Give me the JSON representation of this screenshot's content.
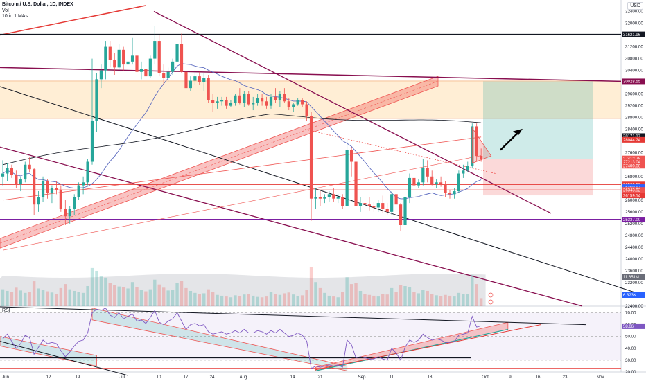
{
  "header": {
    "title": "Bitcoin / U.S. Dollar, 1D, INDEX",
    "vol_label": "Vol",
    "ma_label": "10 in 1 MAs",
    "currency": "USD",
    "rsi_label": "RSI"
  },
  "colors": {
    "up": "#26a69a",
    "down": "#ef5350",
    "arrow": "#000000",
    "support": "#7b1fa2",
    "resistance": "#e53935",
    "channel": "#880e4f"
  },
  "icons": [
    "long-arrow-icon",
    "close-x-icon"
  ],
  "chart_data": [
    {
      "type": "candlestick",
      "title": "Bitcoin / U.S. Dollar, 1D, INDEX",
      "ylim": [
        22400,
        32600
      ],
      "y_ticks": [
        "32400.00",
        "32000.00",
        "31600.00",
        "31200.00",
        "30800.00",
        "30400.00",
        "30000.00",
        "29600.00",
        "29200.00",
        "28800.00",
        "28400.00",
        "28000.00",
        "27600.00",
        "27200.00",
        "26800.00",
        "26400.00",
        "26000.00",
        "25600.00",
        "25200.00",
        "24800.00",
        "24400.00",
        "24000.00",
        "23600.00",
        "23200.00",
        "22800.00",
        "22400.00"
      ],
      "price_badges": [
        {
          "label": "31621.96",
          "value": 31622,
          "color": "#131722"
        },
        {
          "label": "30028.55",
          "value": 30028,
          "color": "#880e4f"
        },
        {
          "label": "28171.17",
          "value": 28171,
          "color": "#131722"
        },
        {
          "label": "28044.24",
          "value": 28044,
          "color": "#e53935"
        },
        {
          "label": "27412.78",
          "value": 27413,
          "color": "#ef5350"
        },
        {
          "label": "27213.04",
          "value": 27290,
          "color": "#ef5350"
        },
        {
          "label": "27400.00",
          "value": 27165,
          "color": "#ef5350"
        },
        {
          "label": "26529.57",
          "value": 26530,
          "color": "#e53935"
        },
        {
          "label": "26469.87",
          "value": 26440,
          "color": "#2962ff"
        },
        {
          "label": "26343.92",
          "value": 26344,
          "color": "#ef5350"
        },
        {
          "label": "26159.14",
          "value": 26159,
          "color": "#e53935"
        },
        {
          "label": "25337.00",
          "value": 25337,
          "color": "#7b1fa2"
        }
      ],
      "volume_badges": [
        "11.651M",
        "6.323K"
      ],
      "horizontal_levels": [
        31622,
        30028,
        26530,
        26340,
        25337
      ],
      "candles_ohlc": [
        [
          26800,
          27350,
          26500,
          26900
        ],
        [
          26900,
          27250,
          26650,
          27100
        ],
        [
          27100,
          27200,
          26750,
          26850
        ],
        [
          26850,
          27000,
          26400,
          26550
        ],
        [
          26550,
          26800,
          26300,
          26700
        ],
        [
          26700,
          27300,
          26600,
          27200
        ],
        [
          27200,
          27450,
          26950,
          27050
        ],
        [
          27050,
          27100,
          25500,
          25850
        ],
        [
          25850,
          26300,
          25600,
          26100
        ],
        [
          26100,
          26800,
          25950,
          26650
        ],
        [
          26650,
          26700,
          26050,
          26250
        ],
        [
          26250,
          26500,
          25900,
          26400
        ],
        [
          26400,
          26650,
          26200,
          26350
        ],
        [
          26350,
          26500,
          25600,
          25700
        ],
        [
          25700,
          26000,
          25150,
          25450
        ],
        [
          25450,
          25800,
          25200,
          25700
        ],
        [
          25700,
          26200,
          25500,
          26100
        ],
        [
          26100,
          26600,
          26000,
          26500
        ],
        [
          26500,
          26800,
          26200,
          26600
        ],
        [
          26600,
          27400,
          26500,
          27300
        ],
        [
          27300,
          30800,
          27200,
          28700
        ],
        [
          28700,
          30300,
          28300,
          30100
        ],
        [
          30100,
          30600,
          29800,
          30400
        ],
        [
          30400,
          31400,
          30100,
          31200
        ],
        [
          31200,
          31400,
          30500,
          30750
        ],
        [
          30750,
          31000,
          30250,
          30500
        ],
        [
          30500,
          31300,
          30400,
          31100
        ],
        [
          31100,
          31200,
          30400,
          30600
        ],
        [
          30600,
          30900,
          30300,
          30700
        ],
        [
          30700,
          31500,
          30600,
          30900
        ],
        [
          30900,
          31100,
          30200,
          30350
        ],
        [
          30350,
          30700,
          30100,
          30450
        ],
        [
          30450,
          30600,
          30000,
          30200
        ],
        [
          30200,
          30900,
          30150,
          30800
        ],
        [
          30800,
          31900,
          30600,
          31400
        ],
        [
          31400,
          31600,
          30200,
          30300
        ],
        [
          30300,
          30600,
          29900,
          30150
        ],
        [
          30150,
          30500,
          30000,
          30350
        ],
        [
          30350,
          30800,
          30250,
          30700
        ],
        [
          30700,
          31500,
          30500,
          31300
        ],
        [
          31300,
          31650,
          30300,
          30350
        ],
        [
          30350,
          30400,
          29600,
          29800
        ],
        [
          29800,
          30200,
          29700,
          30050
        ],
        [
          30050,
          30400,
          29900,
          30200
        ],
        [
          30200,
          30350,
          29900,
          30000
        ],
        [
          30000,
          30300,
          29700,
          30150
        ],
        [
          30150,
          30250,
          29300,
          29400
        ],
        [
          29400,
          29600,
          29000,
          29300
        ],
        [
          29300,
          29500,
          29100,
          29350
        ],
        [
          29350,
          29500,
          29200,
          29400
        ],
        [
          29400,
          29500,
          29100,
          29200
        ],
        [
          29200,
          29400,
          29150,
          29300
        ],
        [
          29300,
          29600,
          29200,
          29550
        ],
        [
          29550,
          29800,
          29250,
          29300
        ],
        [
          29300,
          29700,
          29150,
          29600
        ],
        [
          29600,
          29700,
          29200,
          29250
        ],
        [
          29250,
          29500,
          29050,
          29300
        ],
        [
          29300,
          29600,
          29200,
          29450
        ],
        [
          29450,
          29600,
          29200,
          29350
        ],
        [
          29350,
          29500,
          29100,
          29200
        ],
        [
          29200,
          29600,
          29100,
          29500
        ],
        [
          29500,
          29800,
          29300,
          29400
        ],
        [
          29400,
          29700,
          29150,
          29600
        ],
        [
          29600,
          29800,
          29300,
          29350
        ],
        [
          29350,
          29450,
          29050,
          29150
        ],
        [
          29150,
          29300,
          29000,
          29250
        ],
        [
          29250,
          29450,
          29200,
          29400
        ],
        [
          29400,
          29450,
          29150,
          29250
        ],
        [
          29250,
          29350,
          28700,
          28850
        ],
        [
          28850,
          29000,
          25300,
          26050
        ],
        [
          26050,
          26400,
          25700,
          26100
        ],
        [
          26100,
          26300,
          25800,
          26050
        ],
        [
          26050,
          26200,
          25900,
          26100
        ],
        [
          26100,
          26300,
          25950,
          26200
        ],
        [
          26200,
          26400,
          25950,
          26050
        ],
        [
          26050,
          26200,
          25900,
          26100
        ],
        [
          26100,
          26200,
          25700,
          25800
        ],
        [
          25800,
          28100,
          25800,
          27700
        ],
        [
          27700,
          27800,
          26800,
          27300
        ],
        [
          27300,
          27400,
          25400,
          25800
        ],
        [
          25800,
          26100,
          25600,
          25900
        ],
        [
          25900,
          26000,
          25750,
          25850
        ],
        [
          25850,
          26100,
          25650,
          25800
        ],
        [
          25800,
          25950,
          25600,
          25750
        ],
        [
          25750,
          26000,
          25600,
          25900
        ],
        [
          25900,
          26150,
          25550,
          25700
        ],
        [
          25700,
          25900,
          25500,
          25600
        ],
        [
          25600,
          26300,
          25500,
          26200
        ],
        [
          26200,
          26300,
          25700,
          25850
        ],
        [
          25850,
          25900,
          24950,
          25150
        ],
        [
          25150,
          26450,
          25100,
          26100
        ],
        [
          26100,
          26900,
          25900,
          26750
        ],
        [
          26750,
          26900,
          26200,
          26500
        ],
        [
          26500,
          26700,
          26400,
          26600
        ],
        [
          26600,
          27400,
          26500,
          27100
        ],
        [
          27100,
          27350,
          26600,
          26800
        ],
        [
          26800,
          27000,
          26500,
          26550
        ],
        [
          26550,
          26700,
          26400,
          26600
        ],
        [
          26600,
          26800,
          26450,
          26550
        ],
        [
          26550,
          26650,
          26100,
          26250
        ],
        [
          26250,
          26350,
          26050,
          26200
        ],
        [
          26200,
          26400,
          26050,
          26300
        ],
        [
          26300,
          27000,
          26250,
          26900
        ],
        [
          26900,
          27200,
          26750,
          27000
        ],
        [
          27000,
          27300,
          26950,
          27150
        ],
        [
          27150,
          28600,
          27100,
          28500
        ],
        [
          28500,
          28600,
          27300,
          27500
        ],
        [
          27500,
          27750,
          27300,
          27400
        ]
      ],
      "ma_lines": [
        "MA 10 (blue)",
        "MA 200 (black)",
        "MA 100 (red)"
      ],
      "trade_zone": {
        "entry": 27400,
        "target": 30028,
        "stop": 26159
      }
    },
    {
      "type": "bar",
      "title": "Vol",
      "series": [
        {
          "name": "Vol",
          "values": [
            0.42,
            0.38,
            0.35,
            0.46,
            0.39,
            0.33,
            0.36,
            0.62,
            0.44,
            0.4,
            0.37,
            0.34,
            0.31,
            0.45,
            0.55,
            0.42,
            0.38,
            0.35,
            0.33,
            0.5,
            0.95,
            0.88,
            0.74,
            0.71,
            0.58,
            0.52,
            0.49,
            0.47,
            0.44,
            0.6,
            0.48,
            0.4,
            0.37,
            0.42,
            0.66,
            0.54,
            0.46,
            0.39,
            0.41,
            0.57,
            0.63,
            0.45,
            0.38,
            0.33,
            0.3,
            0.32,
            0.42,
            0.36,
            0.28,
            0.26,
            0.24,
            0.22,
            0.27,
            0.25,
            0.29,
            0.31,
            0.26,
            0.23,
            0.22,
            0.24,
            0.35,
            0.3,
            0.28,
            0.32,
            0.34,
            0.29,
            0.25,
            0.27,
            0.4,
            0.98,
            0.6,
            0.45,
            0.33,
            0.26,
            0.24,
            0.22,
            0.36,
            0.72,
            0.55,
            0.58,
            0.38,
            0.3,
            0.28,
            0.26,
            0.24,
            0.31,
            0.29,
            0.45,
            0.36,
            0.52,
            0.5,
            0.48,
            0.35,
            0.32,
            0.41,
            0.38,
            0.3,
            0.27,
            0.25,
            0.28,
            0.26,
            0.24,
            0.33,
            0.31,
            0.3,
            0.78,
            0.55,
            0.2
          ]
        }
      ]
    },
    {
      "type": "line",
      "title": "RSI",
      "ylim": [
        25,
        75
      ],
      "y_ticks": [
        "70.00",
        "60.00",
        "50.00",
        "40.00",
        "30.00",
        "20.00"
      ],
      "rsi_badge": "58.66",
      "series": [
        {
          "name": "RSI",
          "values": [
            48,
            52,
            46,
            40,
            44,
            51,
            49,
            35,
            41,
            47,
            44,
            45,
            44,
            38,
            33,
            37,
            42,
            46,
            47,
            53,
            70,
            73,
            72,
            74,
            68,
            66,
            70,
            65,
            67,
            69,
            63,
            64,
            61,
            66,
            72,
            62,
            60,
            63,
            65,
            70,
            63,
            56,
            60,
            61,
            59,
            60,
            54,
            52,
            53,
            54,
            52,
            53,
            55,
            53,
            56,
            53,
            53,
            55,
            54,
            52,
            55,
            53,
            56,
            53,
            50,
            51,
            53,
            51,
            46,
            23,
            25,
            24,
            25,
            26,
            25,
            26,
            24,
            47,
            43,
            32,
            33,
            32,
            31,
            31,
            33,
            31,
            30,
            40,
            36,
            30,
            41,
            47,
            45,
            47,
            52,
            49,
            47,
            48,
            47,
            45,
            45,
            46,
            51,
            52,
            53,
            67,
            58,
            59
          ]
        }
      ],
      "trendlines": [
        "rising channel (red)",
        "falling channel (green)"
      ]
    }
  ],
  "x_axis": {
    "labels": [
      "Jun",
      "12",
      "19",
      "Jul",
      "10",
      "17",
      "24",
      "Aug",
      "14",
      "21",
      "Sep",
      "11",
      "18",
      "Oct",
      "9",
      "16",
      "23",
      "Nov"
    ]
  }
}
